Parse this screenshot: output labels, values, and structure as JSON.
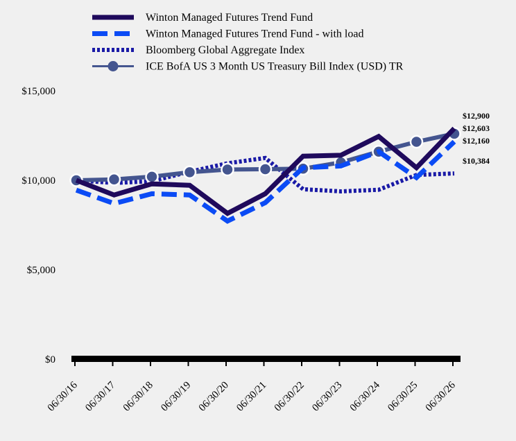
{
  "chart_data": {
    "type": "line",
    "title": "",
    "xlabel": "",
    "ylabel": "",
    "ylim": [
      0,
      15000
    ],
    "yticks": [
      0,
      5000,
      10000,
      15000
    ],
    "ytick_labels": [
      "$0",
      "$5,000",
      "$10,000",
      "$15,000"
    ],
    "grid": false,
    "legend_position": "top",
    "categories": [
      "06/30/16",
      "06/30/17",
      "06/30/18",
      "06/30/19",
      "06/30/20",
      "06/30/21",
      "06/30/22",
      "06/30/23",
      "06/30/24",
      "06/30/25",
      "06/30/26"
    ],
    "series": [
      {
        "name": "Winton Managed Futures Trend Fund",
        "style": "solid",
        "color": "#1f0a5c",
        "values": [
          10000,
          9180,
          9800,
          9720,
          8150,
          9250,
          11350,
          11400,
          12450,
          10700,
          12900
        ],
        "end_label": "$12,900"
      },
      {
        "name": "Winton Managed Futures Trend Fund - with load",
        "style": "dashed",
        "color": "#0b4bf5",
        "values": [
          9450,
          8700,
          9250,
          9180,
          7720,
          8750,
          10700,
          10800,
          11600,
          10150,
          12160
        ],
        "end_label": "$12,160"
      },
      {
        "name": "Bloomberg Global Aggregate Index",
        "style": "dotted",
        "color": "#1a1aa6",
        "values": [
          10000,
          9850,
          9950,
          10480,
          10950,
          11250,
          9500,
          9380,
          9470,
          10300,
          10384
        ],
        "end_label": "$10,384"
      },
      {
        "name": "ICE BofA US 3 Month US Treasury Bill Index (USD) TR",
        "style": "line-markers",
        "color": "#44558f",
        "values": [
          10000,
          10050,
          10200,
          10450,
          10600,
          10620,
          10650,
          11000,
          11600,
          12150,
          12603
        ],
        "end_label": "$12,603"
      }
    ]
  }
}
